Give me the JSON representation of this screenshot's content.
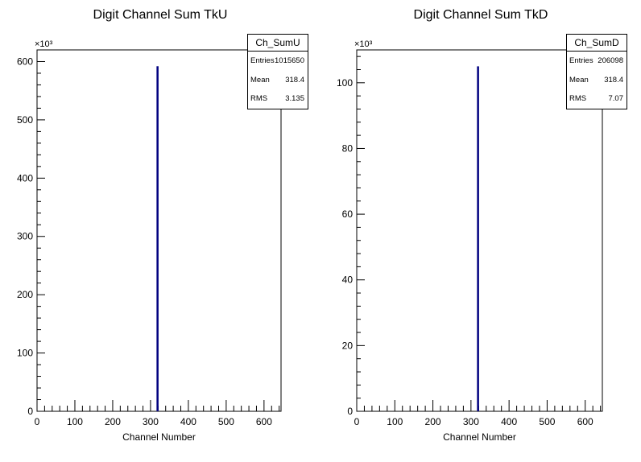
{
  "chart_data": [
    {
      "type": "bar",
      "title": "Digit Channel Sum TkU",
      "xlabel": "Channel Number",
      "ylabel": "",
      "y_multiplier": "×10³",
      "xlim": [
        0,
        645
      ],
      "ylim": [
        0,
        620
      ],
      "xticks": [
        0,
        100,
        200,
        300,
        400,
        500,
        600
      ],
      "yticks": [
        0,
        100,
        200,
        300,
        400,
        500,
        600
      ],
      "color": "#000080",
      "bins": [
        {
          "x": 318,
          "value": 592
        }
      ],
      "stats": {
        "name": "Ch_SumU",
        "rows": [
          {
            "key": "Entries",
            "value": "1015650"
          },
          {
            "key": "Mean",
            "value": "318.4"
          },
          {
            "key": "RMS",
            "value": "3.135"
          }
        ]
      }
    },
    {
      "type": "bar",
      "title": "Digit Channel Sum TkD",
      "xlabel": "Channel Number",
      "ylabel": "",
      "y_multiplier": "×10³",
      "xlim": [
        0,
        645
      ],
      "ylim": [
        0,
        110
      ],
      "xticks": [
        0,
        100,
        200,
        300,
        400,
        500,
        600
      ],
      "yticks": [
        0,
        20,
        40,
        60,
        80,
        100
      ],
      "color": "#000080",
      "bins": [
        {
          "x": 318,
          "value": 105
        }
      ],
      "stats": {
        "name": "Ch_SumD",
        "rows": [
          {
            "key": "Entries",
            "value": "206098"
          },
          {
            "key": "Mean",
            "value": "318.4"
          },
          {
            "key": "RMS",
            "value": "7.07"
          }
        ]
      }
    }
  ]
}
